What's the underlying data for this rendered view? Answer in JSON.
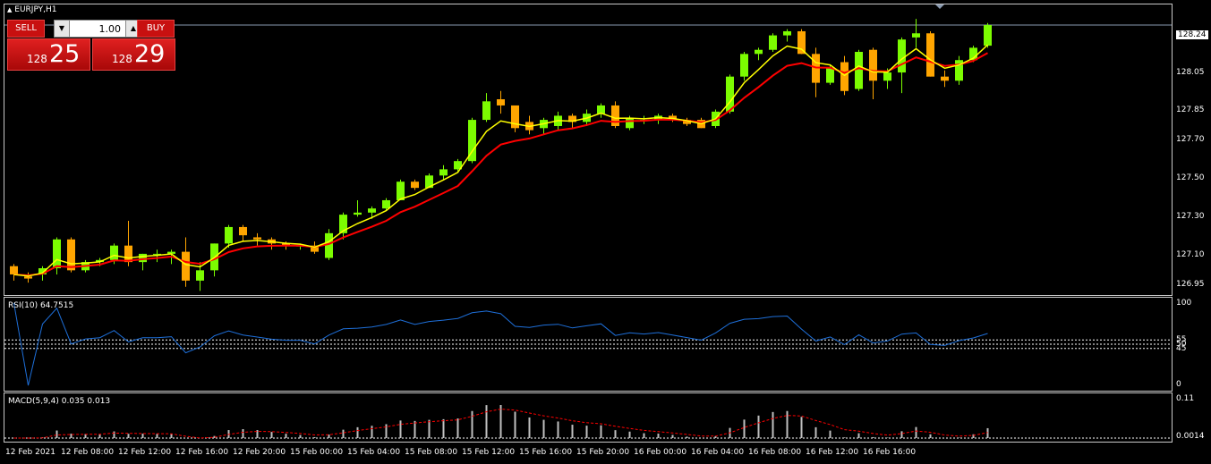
{
  "chart": {
    "symbol": "EURJPY,H1",
    "current_price": "128.24",
    "y_axis_labels": [
      "128.05",
      "127.85",
      "127.70",
      "127.50",
      "127.30",
      "127.10",
      "126.95"
    ],
    "x_axis_labels": [
      "12 Feb 2021",
      "12 Feb 08:00",
      "12 Feb 12:00",
      "12 Feb 16:00",
      "12 Feb 20:00",
      "15 Feb 00:00",
      "15 Feb 04:00",
      "15 Feb 08:00",
      "15 Feb 12:00",
      "15 Feb 16:00",
      "15 Feb 20:00",
      "16 Feb 00:00",
      "16 Feb 04:00",
      "16 Feb 08:00",
      "16 Feb 12:00",
      "16 Feb 16:00"
    ],
    "colors": {
      "bull": "#7cfc00",
      "bear": "#ffa500",
      "ma_fast": "#ffff00",
      "ma_slow": "#ff0000",
      "rsi": "#1e6fd9",
      "macd_signal": "#ff0000",
      "macd_hist": "#c0c0c0",
      "grid": "#ffffff",
      "background": "#000000"
    }
  },
  "trade_panel": {
    "sell_label": "SELL",
    "buy_label": "BUY",
    "volume": "1.00",
    "sell_price_small": "128",
    "sell_price_big": "25",
    "buy_price_small": "128",
    "buy_price_big": "29"
  },
  "rsi": {
    "title": "RSI(10) 64.7515",
    "levels": [
      "100",
      "55",
      "50",
      "45",
      "0"
    ]
  },
  "macd": {
    "title": "MACD(5,9,4) 0.035 0.013",
    "axis_top": "0.11",
    "axis_bottom": "0.0014"
  },
  "chart_data": {
    "type": "candlestick",
    "title": "EURJPY,H1",
    "ylim": [
      126.92,
      128.33
    ],
    "candles": [
      {
        "o": 127.06,
        "h": 127.07,
        "l": 126.99,
        "c": 127.02
      },
      {
        "o": 127.01,
        "h": 127.03,
        "l": 126.98,
        "c": 127.0
      },
      {
        "o": 127.02,
        "h": 127.06,
        "l": 126.99,
        "c": 127.05
      },
      {
        "o": 127.05,
        "h": 127.2,
        "l": 127.02,
        "c": 127.19
      },
      {
        "o": 127.19,
        "h": 127.2,
        "l": 127.03,
        "c": 127.04
      },
      {
        "o": 127.04,
        "h": 127.09,
        "l": 127.03,
        "c": 127.08
      },
      {
        "o": 127.08,
        "h": 127.1,
        "l": 127.06,
        "c": 127.09
      },
      {
        "o": 127.09,
        "h": 127.17,
        "l": 127.07,
        "c": 127.16
      },
      {
        "o": 127.16,
        "h": 127.28,
        "l": 127.06,
        "c": 127.08
      },
      {
        "o": 127.08,
        "h": 127.12,
        "l": 127.04,
        "c": 127.12
      },
      {
        "o": 127.12,
        "h": 127.14,
        "l": 127.08,
        "c": 127.12
      },
      {
        "o": 127.12,
        "h": 127.14,
        "l": 127.07,
        "c": 127.13
      },
      {
        "o": 127.13,
        "h": 127.2,
        "l": 126.96,
        "c": 126.99
      },
      {
        "o": 126.99,
        "h": 127.08,
        "l": 126.94,
        "c": 127.04
      },
      {
        "o": 127.04,
        "h": 127.17,
        "l": 127.01,
        "c": 127.17
      },
      {
        "o": 127.17,
        "h": 127.26,
        "l": 127.15,
        "c": 127.25
      },
      {
        "o": 127.25,
        "h": 127.26,
        "l": 127.18,
        "c": 127.21
      },
      {
        "o": 127.2,
        "h": 127.22,
        "l": 127.16,
        "c": 127.19
      },
      {
        "o": 127.19,
        "h": 127.2,
        "l": 127.14,
        "c": 127.17
      },
      {
        "o": 127.17,
        "h": 127.18,
        "l": 127.14,
        "c": 127.16
      },
      {
        "o": 127.16,
        "h": 127.17,
        "l": 127.14,
        "c": 127.16
      },
      {
        "o": 127.16,
        "h": 127.18,
        "l": 127.12,
        "c": 127.13
      },
      {
        "o": 127.1,
        "h": 127.24,
        "l": 127.09,
        "c": 127.22
      },
      {
        "o": 127.22,
        "h": 127.32,
        "l": 127.19,
        "c": 127.31
      },
      {
        "o": 127.31,
        "h": 127.38,
        "l": 127.3,
        "c": 127.32
      },
      {
        "o": 127.32,
        "h": 127.35,
        "l": 127.29,
        "c": 127.34
      },
      {
        "o": 127.34,
        "h": 127.39,
        "l": 127.33,
        "c": 127.38
      },
      {
        "o": 127.38,
        "h": 127.48,
        "l": 127.38,
        "c": 127.47
      },
      {
        "o": 127.47,
        "h": 127.48,
        "l": 127.43,
        "c": 127.44
      },
      {
        "o": 127.44,
        "h": 127.51,
        "l": 127.44,
        "c": 127.5
      },
      {
        "o": 127.5,
        "h": 127.55,
        "l": 127.48,
        "c": 127.53
      },
      {
        "o": 127.53,
        "h": 127.58,
        "l": 127.52,
        "c": 127.57
      },
      {
        "o": 127.57,
        "h": 127.78,
        "l": 127.56,
        "c": 127.77
      },
      {
        "o": 127.77,
        "h": 127.9,
        "l": 127.76,
        "c": 127.86
      },
      {
        "o": 127.87,
        "h": 127.91,
        "l": 127.8,
        "c": 127.84
      },
      {
        "o": 127.84,
        "h": 127.84,
        "l": 127.71,
        "c": 127.73
      },
      {
        "o": 127.76,
        "h": 127.79,
        "l": 127.7,
        "c": 127.72
      },
      {
        "o": 127.73,
        "h": 127.78,
        "l": 127.7,
        "c": 127.77
      },
      {
        "o": 127.74,
        "h": 127.81,
        "l": 127.72,
        "c": 127.79
      },
      {
        "o": 127.79,
        "h": 127.8,
        "l": 127.73,
        "c": 127.76
      },
      {
        "o": 127.76,
        "h": 127.82,
        "l": 127.74,
        "c": 127.8
      },
      {
        "o": 127.8,
        "h": 127.85,
        "l": 127.78,
        "c": 127.84
      },
      {
        "o": 127.84,
        "h": 127.86,
        "l": 127.73,
        "c": 127.74
      },
      {
        "o": 127.73,
        "h": 127.79,
        "l": 127.72,
        "c": 127.78
      },
      {
        "o": 127.77,
        "h": 127.79,
        "l": 127.75,
        "c": 127.77
      },
      {
        "o": 127.77,
        "h": 127.8,
        "l": 127.75,
        "c": 127.79
      },
      {
        "o": 127.79,
        "h": 127.8,
        "l": 127.76,
        "c": 127.77
      },
      {
        "o": 127.77,
        "h": 127.78,
        "l": 127.74,
        "c": 127.75
      },
      {
        "o": 127.77,
        "h": 127.78,
        "l": 127.73,
        "c": 127.73
      },
      {
        "o": 127.74,
        "h": 127.82,
        "l": 127.73,
        "c": 127.81
      },
      {
        "o": 127.81,
        "h": 127.99,
        "l": 127.8,
        "c": 127.98
      },
      {
        "o": 127.98,
        "h": 128.1,
        "l": 127.96,
        "c": 128.09
      },
      {
        "o": 128.09,
        "h": 128.12,
        "l": 128.06,
        "c": 128.11
      },
      {
        "o": 128.11,
        "h": 128.19,
        "l": 128.1,
        "c": 128.18
      },
      {
        "o": 128.18,
        "h": 128.21,
        "l": 128.15,
        "c": 128.2
      },
      {
        "o": 128.2,
        "h": 128.21,
        "l": 128.09,
        "c": 128.09
      },
      {
        "o": 128.09,
        "h": 128.12,
        "l": 127.88,
        "c": 127.95
      },
      {
        "o": 127.95,
        "h": 128.04,
        "l": 127.94,
        "c": 128.02
      },
      {
        "o": 128.05,
        "h": 128.08,
        "l": 127.89,
        "c": 127.91
      },
      {
        "o": 127.92,
        "h": 128.11,
        "l": 127.91,
        "c": 128.1
      },
      {
        "o": 128.11,
        "h": 128.12,
        "l": 127.87,
        "c": 127.96
      },
      {
        "o": 127.96,
        "h": 128.02,
        "l": 127.92,
        "c": 128.0
      },
      {
        "o": 128.0,
        "h": 128.17,
        "l": 127.9,
        "c": 128.16
      },
      {
        "o": 128.17,
        "h": 128.26,
        "l": 128.12,
        "c": 128.19
      },
      {
        "o": 128.19,
        "h": 128.2,
        "l": 127.98,
        "c": 127.98
      },
      {
        "o": 127.98,
        "h": 128.01,
        "l": 127.93,
        "c": 127.96
      },
      {
        "o": 127.96,
        "h": 128.08,
        "l": 127.94,
        "c": 128.06
      },
      {
        "o": 128.06,
        "h": 128.13,
        "l": 128.05,
        "c": 128.12
      },
      {
        "o": 128.13,
        "h": 128.24,
        "l": 128.12,
        "c": 128.23
      }
    ]
  }
}
